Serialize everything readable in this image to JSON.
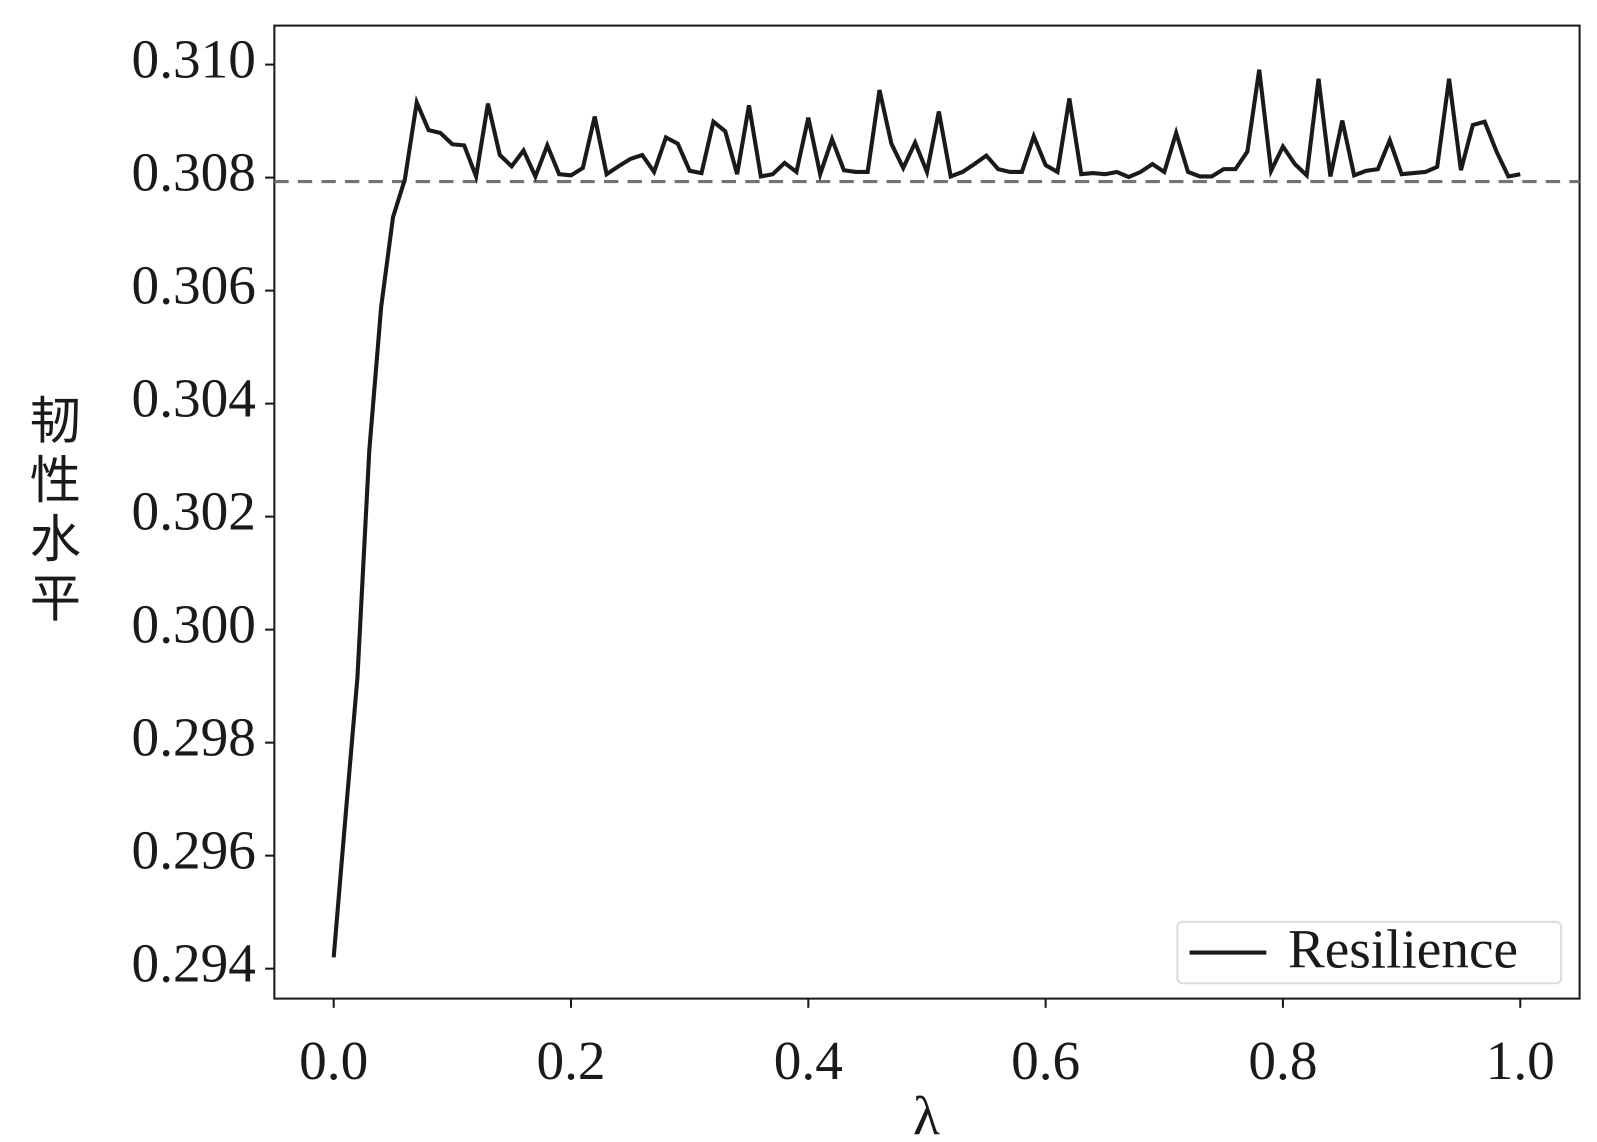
{
  "chart_data": {
    "type": "line",
    "x_label": "λ",
    "y_label": "韧性水平",
    "x": [
      0,
      0.01,
      0.02,
      0.03,
      0.04,
      0.05,
      0.06,
      0.07,
      0.08,
      0.09,
      0.1,
      0.11,
      0.12,
      0.13,
      0.14,
      0.15,
      0.16,
      0.17,
      0.18,
      0.19,
      0.2,
      0.21,
      0.22,
      0.23,
      0.24,
      0.25,
      0.26,
      0.27,
      0.28,
      0.29,
      0.3,
      0.31,
      0.32,
      0.33,
      0.34,
      0.35,
      0.36,
      0.37,
      0.38,
      0.39,
      0.4,
      0.41,
      0.42,
      0.43,
      0.44,
      0.45,
      0.46,
      0.47,
      0.48,
      0.49,
      0.5,
      0.51,
      0.52,
      0.53,
      0.54,
      0.55,
      0.56,
      0.57,
      0.58,
      0.59,
      0.6,
      0.61,
      0.62,
      0.63,
      0.64,
      0.65,
      0.66,
      0.67,
      0.68,
      0.69,
      0.7,
      0.71,
      0.72,
      0.73,
      0.74,
      0.75,
      0.76,
      0.77,
      0.78,
      0.79,
      0.8,
      0.81,
      0.82,
      0.83,
      0.84,
      0.85,
      0.86,
      0.87,
      0.88,
      0.89,
      0.9,
      0.91,
      0.92,
      0.93,
      0.94,
      0.95,
      0.96,
      0.97,
      0.98,
      0.99,
      1.0
    ],
    "series": [
      {
        "name": "Resilience",
        "color": "#1a1a1a",
        "values": [
          0.2942,
          0.2967,
          0.29915,
          0.30317,
          0.30571,
          0.3073,
          0.30797,
          0.30933,
          0.30884,
          0.30879,
          0.30859,
          0.30857,
          0.30802,
          0.30931,
          0.3084,
          0.3082,
          0.30848,
          0.30802,
          0.30857,
          0.30806,
          0.30804,
          0.30817,
          0.30908,
          0.30806,
          0.3082,
          0.30833,
          0.3084,
          0.3081,
          0.30871,
          0.3086,
          0.30812,
          0.30808,
          0.30899,
          0.30882,
          0.30806,
          0.30928,
          0.30802,
          0.30806,
          0.30826,
          0.3081,
          0.30906,
          0.30806,
          0.30868,
          0.30813,
          0.3081,
          0.3081,
          0.30955,
          0.3086,
          0.30817,
          0.30862,
          0.3081,
          0.30917,
          0.30802,
          0.3081,
          0.30824,
          0.30839,
          0.30815,
          0.3081,
          0.3081,
          0.30873,
          0.30822,
          0.3081,
          0.3094,
          0.30806,
          0.30808,
          0.30806,
          0.3081,
          0.30801,
          0.3081,
          0.30824,
          0.3081,
          0.30879,
          0.3081,
          0.30802,
          0.30802,
          0.30815,
          0.30815,
          0.30846,
          0.30991,
          0.30812,
          0.30855,
          0.30824,
          0.30804,
          0.30975,
          0.30802,
          0.30901,
          0.30804,
          0.30812,
          0.30815,
          0.30866,
          0.30806,
          0.30808,
          0.3081,
          0.30819,
          0.30975,
          0.30813,
          0.30893,
          0.30899,
          0.30846,
          0.30802,
          0.30806
        ]
      }
    ],
    "reference_line": {
      "value": 0.30793,
      "color": "#7a7070",
      "style": "dashed"
    },
    "xlim": [
      -0.05,
      1.05
    ],
    "ylim": [
      0.29347,
      0.31069
    ],
    "xticks": [
      {
        "value": 0,
        "label": "0.0"
      },
      0.2,
      0.4,
      0.6,
      0.8,
      {
        "value": 1,
        "label": "1.0"
      }
    ],
    "yticks": [
      0.294,
      0.296,
      0.298,
      {
        "value": 0.3,
        "label": "0.300"
      },
      0.302,
      0.304,
      0.306,
      0.308,
      {
        "value": 0.31,
        "label": "0.310"
      }
    ],
    "grid": false,
    "legend": "lower right"
  }
}
